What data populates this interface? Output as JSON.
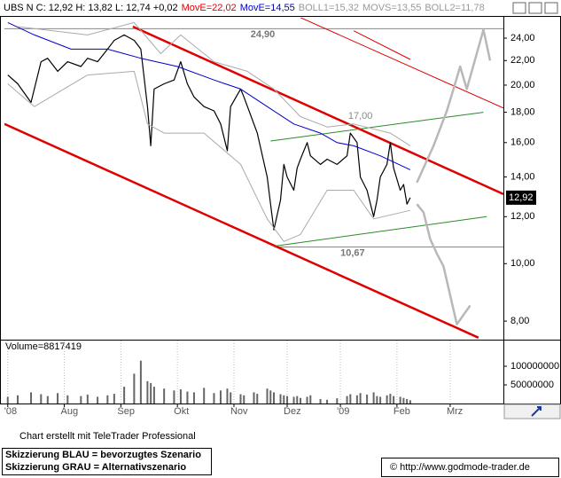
{
  "chart_data": [
    {
      "type": "line",
      "header": [
        {
          "text": "UBS N C: 12,92 H: 13,82 L: 12,74 +0,02",
          "color": "#000000"
        },
        {
          "text": "MovE=22,02",
          "color": "#e00000"
        },
        {
          "text": "MovE=14,55",
          "color": "#0000cc"
        },
        {
          "text": "BOLL1=15,32",
          "color": "#999999"
        },
        {
          "text": "MOVS=13,55",
          "color": "#999999"
        },
        {
          "text": "BOLL2=11,78",
          "color": "#999999"
        }
      ],
      "log_y": true,
      "xlim": [
        0,
        150
      ],
      "ylim": [
        7.47,
        25.98
      ],
      "yticks": [
        {
          "value": 8,
          "label": "8,00"
        },
        {
          "value": 10,
          "label": "10,00"
        },
        {
          "value": 12,
          "label": "12,00"
        },
        {
          "value": 14,
          "label": "14,00"
        },
        {
          "value": 16,
          "label": "16,00"
        },
        {
          "value": 18,
          "label": "18,00"
        },
        {
          "value": 20,
          "label": "20,00"
        },
        {
          "value": 22,
          "label": "22,00"
        },
        {
          "value": 24,
          "label": "24,00"
        }
      ],
      "series": [
        {
          "color": "#000000",
          "width": 1.2,
          "x": [
            1,
            4,
            8,
            11,
            13,
            16,
            19,
            23,
            25,
            28,
            31,
            33,
            36,
            39,
            41,
            43,
            44,
            45,
            48,
            51,
            53,
            55,
            57,
            60,
            63,
            65,
            67,
            68,
            71,
            72,
            75,
            76,
            79,
            80,
            81,
            83,
            84,
            85,
            87,
            88,
            89,
            91,
            92,
            95,
            97,
            100,
            103,
            104,
            106,
            107,
            109,
            111,
            112,
            113,
            115,
            116,
            117,
            119,
            120,
            121,
            122
          ],
          "values": [
            20.8,
            20.1,
            18.7,
            21.9,
            22.2,
            21.1,
            21.9,
            21.5,
            22.2,
            21.9,
            23.0,
            23.8,
            24.3,
            23.8,
            23.0,
            18.4,
            15.8,
            19.7,
            20.1,
            20.4,
            21.9,
            20.1,
            19.1,
            18.4,
            18.1,
            17.2,
            15.5,
            18.4,
            19.7,
            19.1,
            17.2,
            16.6,
            14.0,
            12.6,
            11.4,
            12.8,
            14.7,
            14.0,
            13.3,
            14.5,
            15.0,
            16.0,
            15.2,
            14.7,
            15.0,
            14.7,
            15.2,
            16.6,
            16.0,
            14.0,
            13.3,
            12.0,
            12.8,
            14.0,
            14.7,
            16.0,
            14.5,
            13.3,
            13.6,
            12.6,
            12.92
          ]
        },
        {
          "color": "#0000cc",
          "width": 1,
          "x": [
            1,
            9,
            20,
            31,
            41,
            52,
            63,
            71,
            79,
            87,
            95,
            100,
            105,
            113,
            122
          ],
          "values": [
            25.5,
            24.3,
            23.0,
            23.0,
            22.2,
            21.5,
            20.4,
            19.7,
            18.4,
            17.2,
            16.6,
            16.0,
            15.8,
            15.2,
            14.4
          ]
        },
        {
          "color": "#aaaaaa",
          "width": 1,
          "x": [
            4,
            25,
            39,
            47,
            53,
            63,
            73,
            81,
            89,
            97,
            105,
            116,
            122
          ],
          "values": [
            25.1,
            24.3,
            25.5,
            22.6,
            24.3,
            21.9,
            21.1,
            19.7,
            17.7,
            17.0,
            17.2,
            16.6,
            15.8
          ]
        },
        {
          "color": "#aaaaaa",
          "width": 1,
          "x": [
            1,
            9,
            25,
            39,
            43,
            48,
            60,
            71,
            79,
            84,
            89,
            97,
            105,
            111,
            122
          ],
          "values": [
            20.1,
            18.4,
            20.8,
            21.1,
            17.2,
            16.6,
            16.6,
            14.7,
            11.9,
            10.9,
            11.2,
            13.3,
            13.3,
            11.9,
            12.3
          ]
        }
      ],
      "lines": [
        {
          "color": "#e00000",
          "width": 2.5,
          "x": [
            38.6,
            150
          ],
          "values": [
            25.1,
            13.1
          ]
        },
        {
          "color": "#e00000",
          "width": 2.5,
          "x": [
            0,
            142.5
          ],
          "values": [
            17.2,
            7.5
          ]
        },
        {
          "color": "#e00000",
          "width": 1,
          "x": [
            89,
            150
          ],
          "values": [
            26.0,
            18.3
          ]
        },
        {
          "color": "#e00000",
          "width": 1,
          "x": [
            105,
            122
          ],
          "values": [
            24.7,
            22.1
          ]
        },
        {
          "color": "#2a8a2a",
          "width": 1,
          "x": [
            80,
            144
          ],
          "values": [
            16.1,
            18.0
          ]
        },
        {
          "color": "#2a8a2a",
          "width": 1,
          "x": [
            81,
            145
          ],
          "values": [
            10.7,
            12.0
          ]
        },
        {
          "color": "#b8b8b8",
          "width": 2.5,
          "x": [
            124,
            129,
            133,
            135,
            137,
            139,
            144,
            146
          ],
          "values": [
            13.7,
            15.8,
            18.1,
            19.7,
            21.5,
            19.7,
            24.8,
            22.0
          ]
        },
        {
          "color": "#b8b8b8",
          "width": 2.5,
          "x": [
            124,
            126,
            128,
            130,
            132,
            136,
            140
          ],
          "values": [
            12.6,
            12.2,
            11.0,
            10.4,
            9.9,
            7.9,
            8.5
          ]
        }
      ],
      "levels": [
        {
          "value": 24.9,
          "label": "24,90",
          "x": 74,
          "from": 0
        },
        {
          "value": 10.67,
          "label": "10,67",
          "x": 101,
          "from": 81
        }
      ],
      "annotations": [
        {
          "value": 17.0,
          "label": "17,00",
          "x": 107
        }
      ],
      "last": {
        "value": 12.92,
        "label": "12,92"
      }
    },
    {
      "type": "bar",
      "label": "Volume=8817419",
      "color": "#666666",
      "xlim": [
        0,
        150
      ],
      "xticks": [
        {
          "value": 1,
          "label": "'08"
        },
        {
          "value": 18,
          "label": "Aug"
        },
        {
          "value": 35,
          "label": "Sep"
        },
        {
          "value": 52,
          "label": "Okt"
        },
        {
          "value": 69,
          "label": "Nov"
        },
        {
          "value": 85,
          "label": "Dez"
        },
        {
          "value": 101,
          "label": "'09"
        },
        {
          "value": 118,
          "label": "Feb"
        },
        {
          "value": 134,
          "label": "Mrz"
        }
      ],
      "ylim": [
        0,
        169000000
      ],
      "yticks": [
        50000000,
        100000000
      ],
      "grid": true,
      "x": [
        1,
        4,
        8,
        11,
        13,
        16,
        19,
        23,
        25,
        28,
        31,
        33,
        36,
        39,
        41,
        43,
        44,
        45,
        48,
        51,
        53,
        55,
        57,
        60,
        63,
        65,
        67,
        68,
        71,
        72,
        75,
        76,
        79,
        80,
        81,
        83,
        84,
        85,
        87,
        88,
        89,
        91,
        92,
        95,
        97,
        100,
        103,
        104,
        106,
        107,
        109,
        111,
        112,
        113,
        115,
        116,
        117,
        119,
        120,
        121,
        122
      ],
      "values": [
        18000000,
        22000000,
        30000000,
        25000000,
        20000000,
        28000000,
        22000000,
        20000000,
        24000000,
        18000000,
        22000000,
        26000000,
        45000000,
        80000000,
        115000000,
        60000000,
        55000000,
        45000000,
        40000000,
        35000000,
        38000000,
        32000000,
        30000000,
        42000000,
        28000000,
        35000000,
        40000000,
        30000000,
        25000000,
        22000000,
        30000000,
        26000000,
        40000000,
        35000000,
        30000000,
        25000000,
        22000000,
        20000000,
        18000000,
        20000000,
        15000000,
        18000000,
        22000000,
        12000000,
        10000000,
        14000000,
        20000000,
        25000000,
        22000000,
        28000000,
        24000000,
        30000000,
        20000000,
        18000000,
        22000000,
        26000000,
        20000000,
        18000000,
        15000000,
        12000000,
        8817419
      ]
    }
  ],
  "footer": {
    "credit": "Chart erstellt mit TeleTrader Professional",
    "legend": [
      "Skizzierung BLAU = bevorzugtes Szenario",
      "Skizzierung GRAU = Alternativszenario"
    ],
    "copyright": "© http://www.godmode-trader.de"
  }
}
